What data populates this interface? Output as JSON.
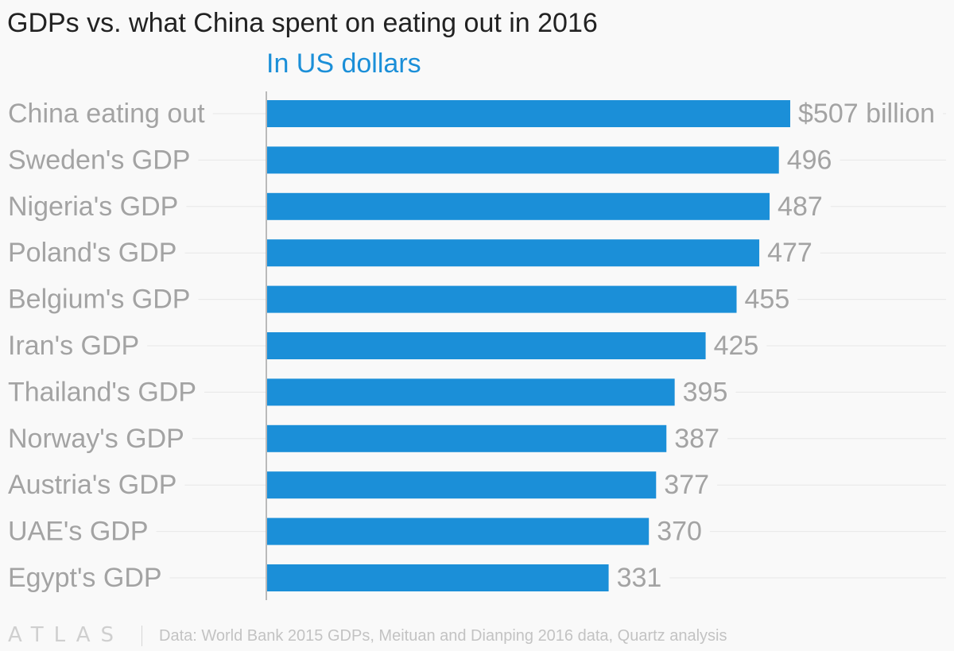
{
  "chart_data": {
    "type": "bar",
    "orientation": "horizontal",
    "title": "GDPs vs. what China spent on eating out in 2016",
    "subtitle": "In US dollars",
    "categories": [
      "China eating out",
      "Sweden's GDP",
      "Nigeria's GDP",
      "Poland's GDP",
      "Belgium's GDP",
      "Iran's GDP",
      "Thailand's GDP",
      "Norway's GDP",
      "Austria's GDP",
      "UAE's GDP",
      "Egypt's GDP"
    ],
    "values": [
      507,
      496,
      487,
      477,
      455,
      425,
      395,
      387,
      377,
      370,
      331
    ],
    "value_labels": [
      "$507 billion",
      "496",
      "487",
      "477",
      "455",
      "425",
      "395",
      "387",
      "377",
      "370",
      "331"
    ],
    "unit": "billion US dollars",
    "xlim": [
      0,
      507
    ],
    "grid": true,
    "bar_color": "#1b8fd8"
  },
  "footer": {
    "logo_text": "ATLAS",
    "source": "Data: World Bank 2015 GDPs, Meituan and Dianping 2016 data, Quartz analysis"
  }
}
